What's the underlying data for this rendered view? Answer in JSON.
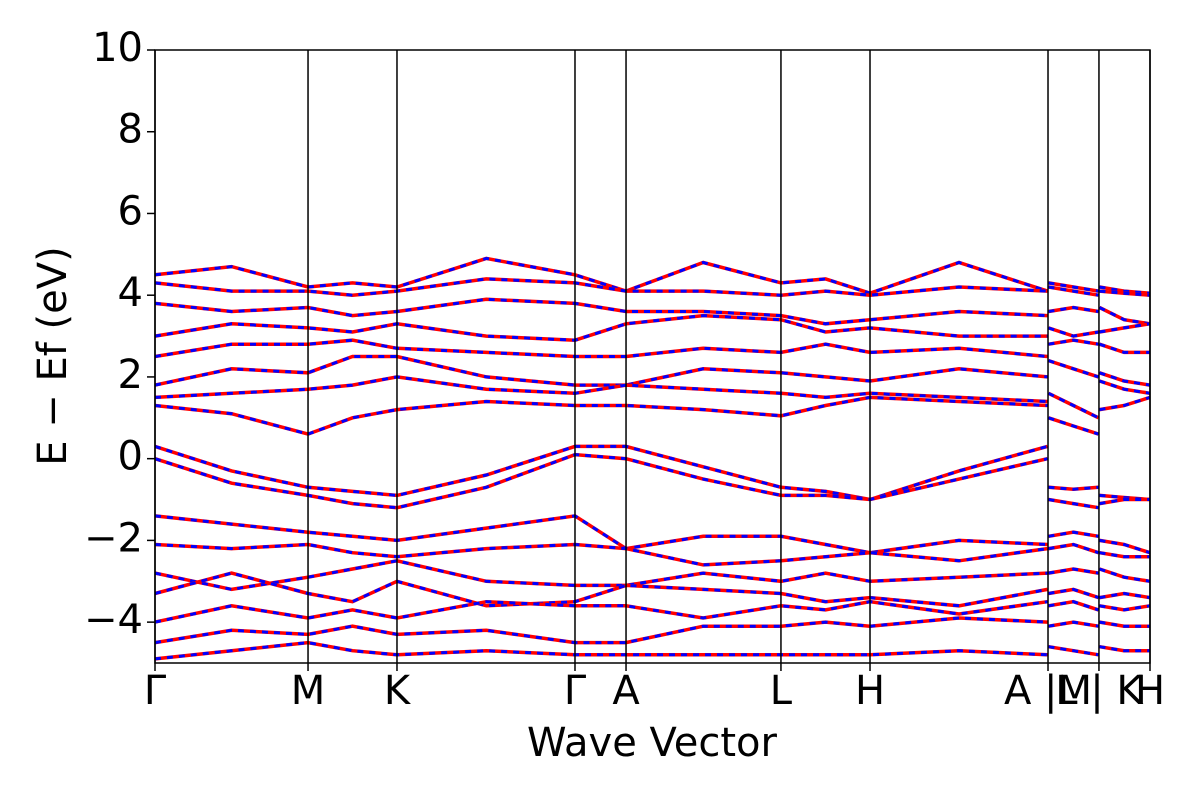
{
  "chart_data": {
    "type": "line",
    "xlabel": "Wave Vector",
    "ylabel": "E − Ef (eV)",
    "xlim": [
      0,
      10.0
    ],
    "ylim": [
      -5,
      10
    ],
    "yticks": [
      {
        "value": -4,
        "label": "−4"
      },
      {
        "value": -2,
        "label": "−2"
      },
      0,
      2,
      4,
      6,
      8,
      10
    ],
    "xticks": [
      {
        "value": 0,
        "label": "Γ"
      },
      {
        "value": 1.538,
        "label": "M"
      },
      {
        "value": 2.432,
        "label": "K"
      },
      {
        "value": 4.221,
        "label": "Γ"
      },
      {
        "value": 4.734,
        "label": "A"
      },
      {
        "value": 6.291,
        "label": "L"
      },
      {
        "value": 7.186,
        "label": "H"
      },
      {
        "value": 8.975,
        "label": "A |M"
      },
      {
        "value": 9.487,
        "label": "L | K"
      },
      {
        "value": 10.0,
        "label": "H"
      }
    ],
    "grid": "x",
    "x": [
      0,
      0.77,
      1.538,
      1.985,
      2.432,
      3.33,
      4.221,
      4.734,
      5.51,
      6.291,
      6.74,
      7.186,
      8.08,
      8.97,
      8.975,
      8.98,
      9.23,
      9.482,
      9.487,
      9.492,
      9.74,
      10.0
    ],
    "series": [
      {
        "color": "#ff0000",
        "dash_color": "#0000ff",
        "values": [
          4.5,
          4.7,
          4.2,
          4.3,
          4.2,
          4.9,
          4.5,
          4.1,
          4.8,
          4.3,
          4.4,
          4.05,
          4.8,
          4.1,
          null,
          4.3,
          4.2,
          4.1,
          null,
          4.2,
          4.1,
          4.05
        ]
      },
      {
        "color": "#ff0000",
        "dash_color": "#0000ff",
        "values": [
          4.3,
          4.1,
          4.1,
          4.0,
          4.1,
          4.4,
          4.3,
          4.1,
          4.1,
          4.0,
          4.1,
          4.0,
          4.2,
          4.1,
          null,
          4.2,
          4.1,
          4.0,
          null,
          4.1,
          4.05,
          4.0
        ]
      },
      {
        "color": "#ff0000",
        "dash_color": "#0000ff",
        "values": [
          3.8,
          3.6,
          3.7,
          3.5,
          3.6,
          3.9,
          3.8,
          3.6,
          3.6,
          3.5,
          3.3,
          3.4,
          3.6,
          3.5,
          null,
          3.6,
          3.7,
          3.6,
          null,
          3.7,
          3.4,
          3.3
        ]
      },
      {
        "color": "#ff0000",
        "dash_color": "#0000ff",
        "values": [
          3.0,
          3.3,
          3.2,
          3.1,
          3.3,
          3.0,
          2.9,
          3.3,
          3.5,
          3.4,
          3.1,
          3.2,
          3.0,
          3.0,
          null,
          3.2,
          3.0,
          3.1,
          null,
          3.1,
          3.2,
          3.3
        ]
      },
      {
        "color": "#ff0000",
        "dash_color": "#0000ff",
        "values": [
          2.5,
          2.8,
          2.8,
          2.9,
          2.7,
          2.6,
          2.5,
          2.5,
          2.7,
          2.6,
          2.8,
          2.6,
          2.7,
          2.5,
          null,
          2.8,
          2.9,
          2.8,
          null,
          2.8,
          2.6,
          2.6
        ]
      },
      {
        "color": "#ff0000",
        "dash_color": "#0000ff",
        "values": [
          1.8,
          2.2,
          2.1,
          2.5,
          2.5,
          2.0,
          1.8,
          1.8,
          2.2,
          2.1,
          2.0,
          1.9,
          2.2,
          2.0,
          null,
          2.4,
          2.2,
          2.0,
          null,
          2.1,
          1.9,
          1.8
        ]
      },
      {
        "color": "#ff0000",
        "dash_color": "#0000ff",
        "values": [
          1.5,
          1.6,
          1.7,
          1.8,
          2.0,
          1.7,
          1.6,
          1.8,
          1.7,
          1.6,
          1.5,
          1.6,
          1.5,
          1.4,
          null,
          1.6,
          1.3,
          1.0,
          null,
          1.9,
          1.7,
          1.6
        ]
      },
      {
        "color": "#ff0000",
        "dash_color": "#0000ff",
        "values": [
          1.3,
          1.1,
          0.6,
          1.0,
          1.2,
          1.4,
          1.3,
          1.3,
          1.2,
          1.05,
          1.3,
          1.5,
          1.4,
          1.3,
          null,
          1.0,
          0.8,
          0.6,
          null,
          1.2,
          1.3,
          1.5
        ]
      },
      {
        "color": "#ff0000",
        "dash_color": "#0000ff",
        "values": [
          0.3,
          -0.3,
          -0.7,
          -0.8,
          -0.9,
          -0.4,
          0.3,
          0.3,
          -0.2,
          -0.7,
          -0.8,
          -1.0,
          -0.3,
          0.3,
          null,
          -0.7,
          -0.75,
          -0.7,
          null,
          -0.9,
          -0.95,
          -1.0
        ]
      },
      {
        "color": "#ff0000",
        "dash_color": "#0000ff",
        "values": [
          0.0,
          -0.6,
          -0.9,
          -1.1,
          -1.2,
          -0.7,
          0.1,
          0.0,
          -0.5,
          -0.9,
          -0.9,
          -1.0,
          -0.5,
          0.0,
          null,
          -1.0,
          -1.1,
          -1.2,
          null,
          -1.1,
          -1.0,
          -1.0
        ]
      },
      {
        "color": "#ff0000",
        "dash_color": "#0000ff",
        "values": [
          -1.4,
          -1.6,
          -1.8,
          -1.9,
          -2.0,
          -1.7,
          -1.4,
          -2.2,
          -1.9,
          -1.9,
          -2.1,
          -2.3,
          -2.0,
          -2.1,
          null,
          -1.9,
          -1.8,
          -1.9,
          null,
          -2.0,
          -2.1,
          -2.3
        ]
      },
      {
        "color": "#ff0000",
        "dash_color": "#0000ff",
        "values": [
          -2.1,
          -2.2,
          -2.1,
          -2.3,
          -2.4,
          -2.2,
          -2.1,
          -2.2,
          -2.6,
          -2.5,
          -2.4,
          -2.3,
          -2.5,
          -2.2,
          null,
          -2.2,
          -2.1,
          -2.3,
          null,
          -2.3,
          -2.4,
          -2.4
        ]
      },
      {
        "color": "#ff0000",
        "dash_color": "#0000ff",
        "values": [
          -2.8,
          -3.2,
          -2.9,
          -2.7,
          -2.5,
          -3.0,
          -3.1,
          -3.1,
          -2.8,
          -3.0,
          -2.8,
          -3.0,
          -2.9,
          -2.8,
          null,
          -2.8,
          -2.7,
          -2.8,
          null,
          -2.7,
          -2.9,
          -3.0
        ]
      },
      {
        "color": "#ff0000",
        "dash_color": "#0000ff",
        "values": [
          -3.3,
          -2.8,
          -3.3,
          -3.5,
          -3.0,
          -3.6,
          -3.5,
          -3.1,
          -3.2,
          -3.3,
          -3.5,
          -3.4,
          -3.6,
          -3.2,
          null,
          -3.3,
          -3.2,
          -3.4,
          null,
          -3.4,
          -3.3,
          -3.4
        ]
      },
      {
        "color": "#ff0000",
        "dash_color": "#0000ff",
        "values": [
          -4.0,
          -3.6,
          -3.9,
          -3.7,
          -3.9,
          -3.5,
          -3.6,
          -3.6,
          -3.9,
          -3.6,
          -3.7,
          -3.5,
          -3.8,
          -3.5,
          null,
          -3.6,
          -3.5,
          -3.7,
          null,
          -3.6,
          -3.7,
          -3.6
        ]
      },
      {
        "color": "#ff0000",
        "dash_color": "#0000ff",
        "values": [
          -4.5,
          -4.2,
          -4.3,
          -4.1,
          -4.3,
          -4.2,
          -4.5,
          -4.5,
          -4.1,
          -4.1,
          -4.0,
          -4.1,
          -3.9,
          -4.0,
          null,
          -4.1,
          -4.0,
          -4.1,
          null,
          -4.0,
          -4.1,
          -4.1
        ]
      },
      {
        "color": "#ff0000",
        "dash_color": "#0000ff",
        "values": [
          -4.9,
          -4.7,
          -4.5,
          -4.7,
          -4.8,
          -4.7,
          -4.8,
          -4.8,
          -4.8,
          -4.8,
          -4.8,
          -4.8,
          -4.7,
          -4.8,
          null,
          -4.6,
          -4.7,
          -4.8,
          null,
          -4.6,
          -4.7,
          -4.7
        ]
      }
    ]
  }
}
